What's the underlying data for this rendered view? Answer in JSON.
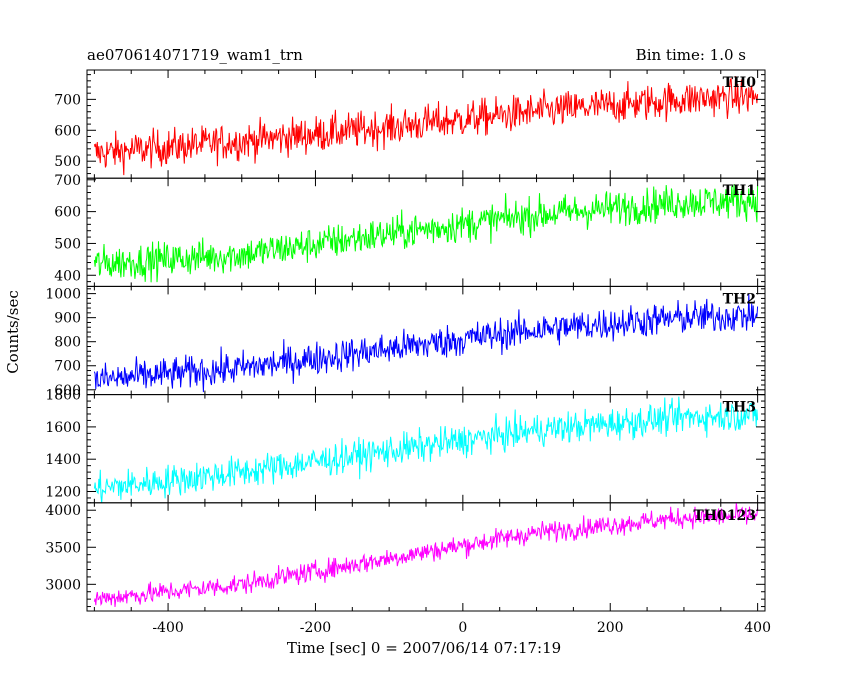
{
  "header": {
    "left": "ae070614071719_wam1_trn",
    "right": "Bin time: 1.0 s"
  },
  "chart_data": {
    "type": "line",
    "ylabel": "Counts/sec",
    "xlabel": "Time [sec] 0 = 2007/06/14 07:17:19",
    "xlim": [
      -510,
      410
    ],
    "x_ticks": [
      -400,
      -200,
      0,
      200,
      400
    ],
    "panels": [
      {
        "name": "TH0",
        "color": "#ff0000",
        "ylim": [
          445,
          795
        ],
        "y_ticks": [
          500,
          600,
          700
        ],
        "trend": [
          [
            -500,
            525
          ],
          [
            -300,
            565
          ],
          [
            -100,
            610
          ],
          [
            100,
            660
          ],
          [
            300,
            700
          ],
          [
            400,
            710
          ]
        ],
        "noise": 30
      },
      {
        "name": "TH1",
        "color": "#00ff00",
        "ylim": [
          365,
          705
        ],
        "y_ticks": [
          400,
          500,
          600,
          700
        ],
        "trend": [
          [
            -500,
            435
          ],
          [
            -300,
            465
          ],
          [
            -100,
            530
          ],
          [
            100,
            590
          ],
          [
            300,
            630
          ],
          [
            400,
            635
          ]
        ],
        "noise": 28
      },
      {
        "name": "TH2",
        "color": "#0000ff",
        "ylim": [
          580,
          1030
        ],
        "y_ticks": [
          600,
          700,
          800,
          900,
          1000
        ],
        "trend": [
          [
            -500,
            640
          ],
          [
            -300,
            690
          ],
          [
            -100,
            770
          ],
          [
            100,
            850
          ],
          [
            300,
            900
          ],
          [
            400,
            910
          ]
        ],
        "noise": 35
      },
      {
        "name": "TH3",
        "color": "#00ffff",
        "ylim": [
          1130,
          1800
        ],
        "y_ticks": [
          1200,
          1400,
          1600,
          1800
        ],
        "trend": [
          [
            -500,
            1215
          ],
          [
            -300,
            1320
          ],
          [
            -100,
            1450
          ],
          [
            100,
            1580
          ],
          [
            300,
            1660
          ],
          [
            400,
            1675
          ]
        ],
        "noise": 50
      },
      {
        "name": "TH0123",
        "color": "#ff00ff",
        "ylim": [
          2640,
          4100
        ],
        "y_ticks": [
          3000,
          3500,
          4000
        ],
        "trend": [
          [
            -500,
            2800
          ],
          [
            -300,
            3000
          ],
          [
            -100,
            3350
          ],
          [
            100,
            3700
          ],
          [
            300,
            3900
          ],
          [
            400,
            3930
          ]
        ],
        "noise": 70
      }
    ]
  }
}
